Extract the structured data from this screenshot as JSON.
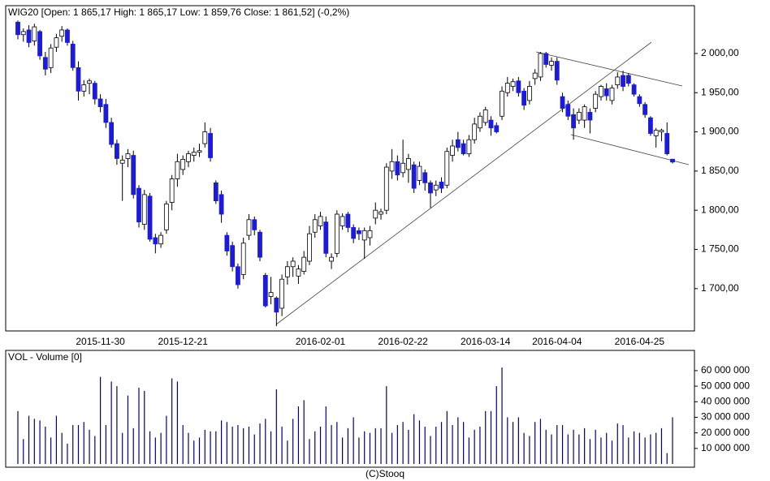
{
  "chart_data": [
    {
      "type": "candlestick",
      "title": "WIG20 [Open: 1 865,17  High: 1 865,17  Low: 1 859,76  Close: 1 861,52] (-0,2%)",
      "categories": [
        null,
        null,
        null,
        null,
        null,
        null,
        null,
        null,
        null,
        null,
        null,
        null,
        null,
        null,
        null,
        "2015-11-30",
        null,
        null,
        null,
        null,
        null,
        null,
        null,
        null,
        null,
        null,
        null,
        null,
        null,
        null,
        "2015-12-21",
        null,
        null,
        null,
        null,
        null,
        null,
        null,
        null,
        null,
        null,
        null,
        null,
        null,
        null,
        null,
        null,
        null,
        null,
        null,
        null,
        null,
        null,
        null,
        null,
        "2016-02-01",
        null,
        null,
        null,
        null,
        null,
        null,
        null,
        null,
        null,
        null,
        null,
        null,
        null,
        null,
        "2016-02-22",
        null,
        null,
        null,
        null,
        null,
        null,
        null,
        null,
        null,
        null,
        null,
        null,
        null,
        null,
        "2016-03-14",
        null,
        null,
        null,
        null,
        null,
        null,
        null,
        null,
        null,
        null,
        null,
        null,
        "2016-04-04",
        null,
        null,
        null,
        null,
        null,
        null,
        null,
        null,
        null,
        null,
        null,
        null,
        null,
        null,
        "2016-04-25",
        null,
        null,
        null,
        null,
        null,
        null
      ],
      "open": [
        2040,
        2024,
        2030,
        2016,
        2028,
        1995,
        1982,
        2008,
        2022,
        2030,
        2012,
        1982,
        1952,
        1962,
        1962,
        1942,
        1935,
        1912,
        1885,
        1860,
        1866,
        1870,
        1828,
        1782,
        1818,
        1765,
        1757,
        1775,
        1810,
        1840,
        1852,
        1862,
        1870,
        1874,
        1885,
        1898,
        1835,
        1820,
        1768,
        1755,
        1728,
        1718,
        1768,
        1788,
        1772,
        1717,
        1690,
        1688,
        1675,
        1715,
        1728,
        1716,
        1722,
        1735,
        1772,
        1780,
        1785,
        1735,
        1745,
        1780,
        1795,
        1778,
        1774,
        1762,
        1765,
        1790,
        1795,
        1800,
        1850,
        1862,
        1848,
        1852,
        1858,
        1838,
        1848,
        1835,
        1826,
        1836,
        1832,
        1870,
        1890,
        1885,
        1872,
        1890,
        1905,
        1912,
        1915,
        1908,
        1920,
        1950,
        1958,
        1965,
        1952,
        1940,
        1968,
        1970,
        2000,
        1985,
        1990,
        1945,
        1935,
        1922,
        1915,
        1915,
        1925,
        1930,
        1945,
        1955,
        1940,
        1960,
        1972,
        1972,
        1960,
        1945,
        1935,
        1918,
        1895,
        1900,
        1898,
        1865.17
      ],
      "high": [
        2042,
        2032,
        2036,
        2038,
        2030,
        2002,
        2012,
        2025,
        2035,
        2032,
        2016,
        1990,
        1966,
        1968,
        1965,
        1948,
        1942,
        1918,
        1890,
        1870,
        1878,
        1876,
        1832,
        1826,
        1822,
        1770,
        1772,
        1812,
        1845,
        1872,
        1870,
        1876,
        1880,
        1885,
        1912,
        1905,
        1838,
        1825,
        1772,
        1760,
        1732,
        1765,
        1795,
        1792,
        1775,
        1720,
        1715,
        1690,
        1718,
        1735,
        1740,
        1730,
        1748,
        1780,
        1795,
        1798,
        1792,
        1745,
        1800,
        1796,
        1798,
        1782,
        1778,
        1778,
        1780,
        1810,
        1802,
        1860,
        1878,
        1870,
        1890,
        1872,
        1862,
        1862,
        1852,
        1838,
        1838,
        1842,
        1880,
        1890,
        1900,
        1890,
        1896,
        1918,
        1925,
        1932,
        1920,
        1912,
        1958,
        1970,
        1968,
        1970,
        1956,
        1965,
        1980,
        2002,
        2002,
        1995,
        1995,
        1950,
        1940,
        1930,
        1930,
        1935,
        1930,
        1952,
        1960,
        1962,
        1960,
        1976,
        1978,
        1975,
        1962,
        1948,
        1938,
        1920,
        1905,
        1904,
        1912,
        1865.17
      ],
      "low": [
        2018,
        2015,
        2008,
        2010,
        1992,
        1972,
        1975,
        2002,
        2015,
        2010,
        1978,
        1940,
        1945,
        1948,
        1935,
        1925,
        1905,
        1880,
        1858,
        1812,
        1855,
        1815,
        1778,
        1775,
        1760,
        1745,
        1752,
        1770,
        1800,
        1830,
        1845,
        1855,
        1862,
        1868,
        1880,
        1862,
        1808,
        1784,
        1742,
        1722,
        1700,
        1712,
        1762,
        1768,
        1735,
        1676,
        1680,
        1652,
        1665,
        1705,
        1715,
        1706,
        1718,
        1730,
        1765,
        1775,
        1740,
        1725,
        1740,
        1775,
        1772,
        1758,
        1762,
        1738,
        1755,
        1782,
        1788,
        1795,
        1840,
        1838,
        1842,
        1835,
        1822,
        1832,
        1825,
        1803,
        1818,
        1822,
        1828,
        1862,
        1875,
        1870,
        1868,
        1885,
        1900,
        1908,
        1895,
        1898,
        1915,
        1945,
        1952,
        1945,
        1928,
        1935,
        1960,
        1965,
        1982,
        1978,
        1960,
        1925,
        1915,
        1890,
        1910,
        1905,
        1898,
        1925,
        1940,
        1940,
        1935,
        1955,
        1952,
        1958,
        1945,
        1932,
        1918,
        1895,
        1880,
        1888,
        1870,
        1859.76
      ],
      "close": [
        2024,
        2028,
        2014,
        2034,
        1997,
        1980,
        2007,
        2020,
        2030,
        2014,
        1982,
        1952,
        1960,
        1965,
        1942,
        1932,
        1912,
        1884,
        1866,
        1864,
        1872,
        1820,
        1785,
        1820,
        1763,
        1757,
        1768,
        1808,
        1840,
        1862,
        1865,
        1872,
        1874,
        1876,
        1900,
        1867,
        1812,
        1795,
        1748,
        1728,
        1705,
        1758,
        1788,
        1775,
        1740,
        1678,
        1695,
        1670,
        1712,
        1728,
        1735,
        1725,
        1740,
        1770,
        1788,
        1792,
        1745,
        1740,
        1795,
        1792,
        1778,
        1764,
        1770,
        1774,
        1774,
        1800,
        1798,
        1855,
        1862,
        1845,
        1860,
        1866,
        1828,
        1856,
        1835,
        1822,
        1832,
        1828,
        1875,
        1882,
        1880,
        1872,
        1890,
        1910,
        1920,
        1928,
        1905,
        1900,
        1952,
        1962,
        1964,
        1950,
        1934,
        1958,
        1975,
        2000,
        1986,
        1990,
        1966,
        1930,
        1920,
        1905,
        1925,
        1932,
        1915,
        1948,
        1958,
        1946,
        1956,
        1970,
        1958,
        1962,
        1948,
        1936,
        1922,
        1898,
        1902,
        1902,
        1872,
        1861.52
      ],
      "up_color": "#ffffff",
      "down_color": "#1c1cd8",
      "ylim": [
        1646,
        2061
      ],
      "yticks": [
        {
          "value": 1700,
          "label": "1 700,00"
        },
        {
          "value": 1750,
          "label": "1 750,00"
        },
        {
          "value": 1800,
          "label": "1 800,00"
        },
        {
          "value": 1850,
          "label": "1 850,00"
        },
        {
          "value": 1900,
          "label": "1 900,00"
        },
        {
          "value": 1950,
          "label": "1 950,00"
        },
        {
          "value": 2000,
          "label": "2 000,00"
        }
      ]
    },
    {
      "type": "bar",
      "title": "VOL - Volume [0]",
      "values": [
        34000000,
        16000000,
        31000000,
        29000000,
        28000000,
        24000000,
        17000000,
        31000000,
        20000000,
        13000000,
        25000000,
        25000000,
        27000000,
        22000000,
        18000000,
        56000000,
        25000000,
        53000000,
        50000000,
        20000000,
        44000000,
        23000000,
        49000000,
        47000000,
        21000000,
        17000000,
        20000000,
        31000000,
        55000000,
        53000000,
        25000000,
        20000000,
        15000000,
        17000000,
        22000000,
        21000000,
        21000000,
        28000000,
        27000000,
        24000000,
        25000000,
        23000000,
        24000000,
        19000000,
        26000000,
        29000000,
        21000000,
        48000000,
        24000000,
        15000000,
        29000000,
        37000000,
        41000000,
        16000000,
        21000000,
        24000000,
        37000000,
        25000000,
        27000000,
        17000000,
        23000000,
        30000000,
        17000000,
        21000000,
        20000000,
        23000000,
        23000000,
        50000000,
        20000000,
        25000000,
        27000000,
        22000000,
        32000000,
        28000000,
        24000000,
        18000000,
        24000000,
        27000000,
        34000000,
        25000000,
        30000000,
        27000000,
        17000000,
        22000000,
        24000000,
        34000000,
        34000000,
        50000000,
        62000000,
        30000000,
        27000000,
        30000000,
        20000000,
        18000000,
        27000000,
        29000000,
        22000000,
        19000000,
        25000000,
        25000000,
        19000000,
        22000000,
        19000000,
        23000000,
        16000000,
        22000000,
        17000000,
        20000000,
        15000000,
        26000000,
        25000000,
        17000000,
        21000000,
        20000000,
        17000000,
        19000000,
        20000000,
        23000000,
        7000000,
        30000000
      ],
      "color": "#000080",
      "ylim": [
        0,
        73000000
      ],
      "yticks": [
        {
          "value": 10000000,
          "label": "10 000 000"
        },
        {
          "value": 20000000,
          "label": "20 000 000"
        },
        {
          "value": 30000000,
          "label": "30 000 000"
        },
        {
          "value": 40000000,
          "label": "40 000 000"
        },
        {
          "value": 50000000,
          "label": "50 000 000"
        },
        {
          "value": 60000000,
          "label": "60 000 000"
        }
      ]
    }
  ],
  "footer": "(C)Stooq"
}
